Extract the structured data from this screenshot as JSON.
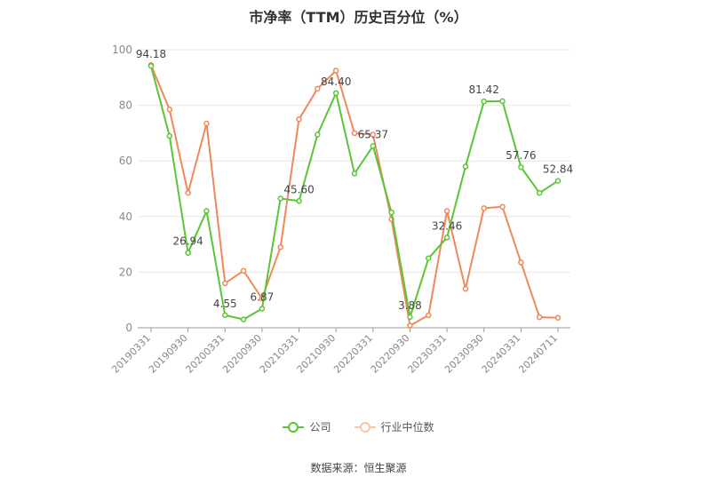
{
  "chart_data": {
    "type": "line",
    "title": "市净率（TTM）历史百分位（%）",
    "ylim": [
      0,
      100
    ],
    "yticks": [
      0,
      20,
      40,
      60,
      80,
      100
    ],
    "x_tick_labels": [
      "20190331",
      "20190930",
      "20200331",
      "20200930",
      "20210331",
      "20210930",
      "20220331",
      "20220930",
      "20230331",
      "20230930",
      "20240331",
      "20240711"
    ],
    "x": [
      "20190331",
      "20190630",
      "20190930",
      "20191231",
      "20200331",
      "20200630",
      "20200930",
      "20201231",
      "20210331",
      "20210630",
      "20210930",
      "20211231",
      "20220331",
      "20220630",
      "20220930",
      "20221231",
      "20230331",
      "20230630",
      "20230930",
      "20231231",
      "20240331",
      "20240630",
      "20240711"
    ],
    "grid": true,
    "legend_position": "bottom",
    "series": [
      {
        "name": "公司",
        "color": "#5ac536",
        "values": [
          94.18,
          69.0,
          26.94,
          42.0,
          4.55,
          3.0,
          6.87,
          46.5,
          45.6,
          69.5,
          84.4,
          55.5,
          65.37,
          41.5,
          3.88,
          25.0,
          32.46,
          58.0,
          81.42,
          81.5,
          57.76,
          48.5,
          52.84
        ],
        "labels": [
          "94.18",
          null,
          "26.94",
          null,
          "4.55",
          null,
          "6.87",
          null,
          "45.60",
          null,
          "84.40",
          null,
          "65.37",
          null,
          "3.88",
          null,
          "32.46",
          null,
          "81.42",
          null,
          "57.76",
          null,
          "52.84"
        ]
      },
      {
        "name": "行业中位数",
        "color": "#f0885a",
        "values": [
          94.5,
          78.5,
          48.5,
          73.5,
          16.0,
          20.5,
          10.5,
          29.0,
          75.0,
          86.0,
          92.5,
          70.0,
          69.5,
          39.0,
          0.8,
          4.5,
          42.0,
          14.0,
          43.0,
          43.5,
          23.5,
          3.8,
          3.6
        ]
      }
    ]
  },
  "source_text": "数据来源：恒生聚源"
}
